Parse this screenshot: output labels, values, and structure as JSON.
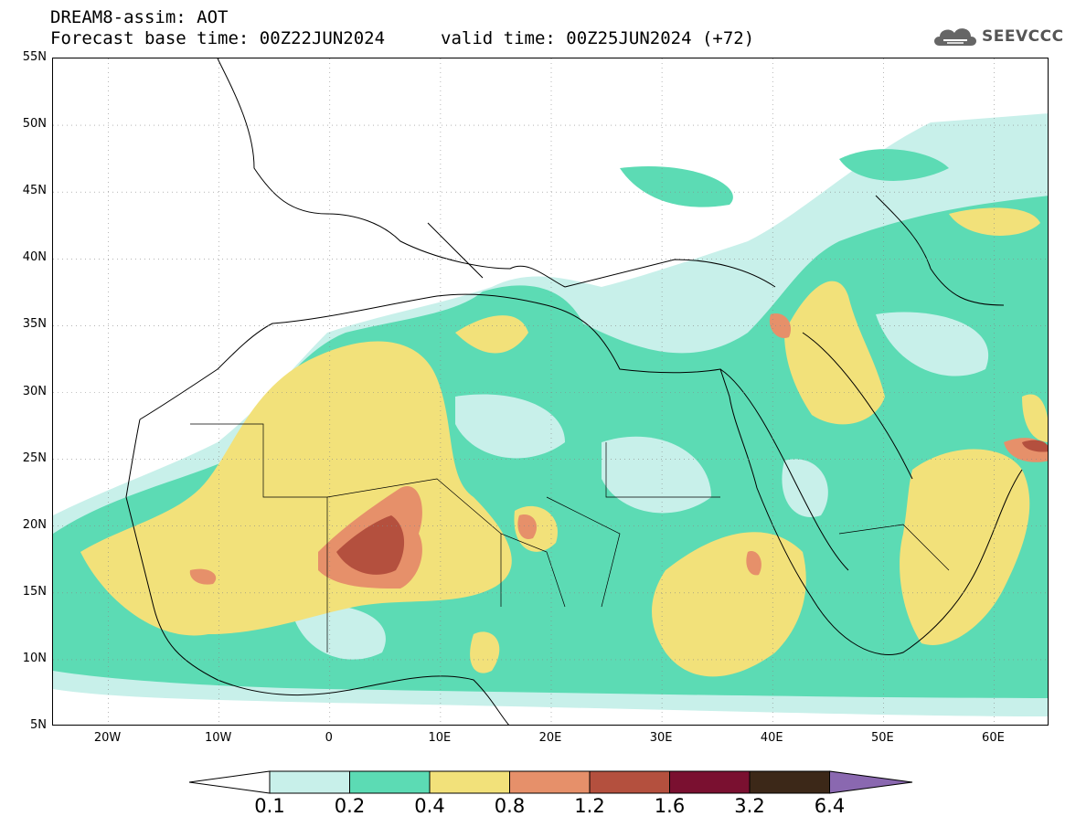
{
  "header": {
    "title": "DREAM8-assim: AOT",
    "base_time": "Forecast base time: 00Z22JUN2024",
    "valid_time": "valid time: 00Z25JUN2024 (+72)"
  },
  "logo": {
    "text": "SEEVCCC",
    "icon": "cloud-icon"
  },
  "map": {
    "lon_range": [
      -25,
      65
    ],
    "lat_range": [
      5,
      55
    ],
    "lat_labels": [
      "55N",
      "50N",
      "45N",
      "40N",
      "35N",
      "30N",
      "25N",
      "20N",
      "15N",
      "10N",
      "5N"
    ],
    "lon_labels": [
      "20W",
      "10W",
      "0",
      "10E",
      "20E",
      "30E",
      "40E",
      "50E",
      "60E"
    ],
    "grid": true
  },
  "colorbar": {
    "labels": [
      "0.1",
      "0.2",
      "0.4",
      "0.8",
      "1.2",
      "1.6",
      "3.2",
      "6.4"
    ],
    "colors": [
      "#c8f0ea",
      "#5cdbb4",
      "#f2e17a",
      "#e6906a",
      "#b4503e",
      "#7a1030",
      "#3c2818",
      "#8a68b0"
    ],
    "under_color": "#ffffff"
  }
}
